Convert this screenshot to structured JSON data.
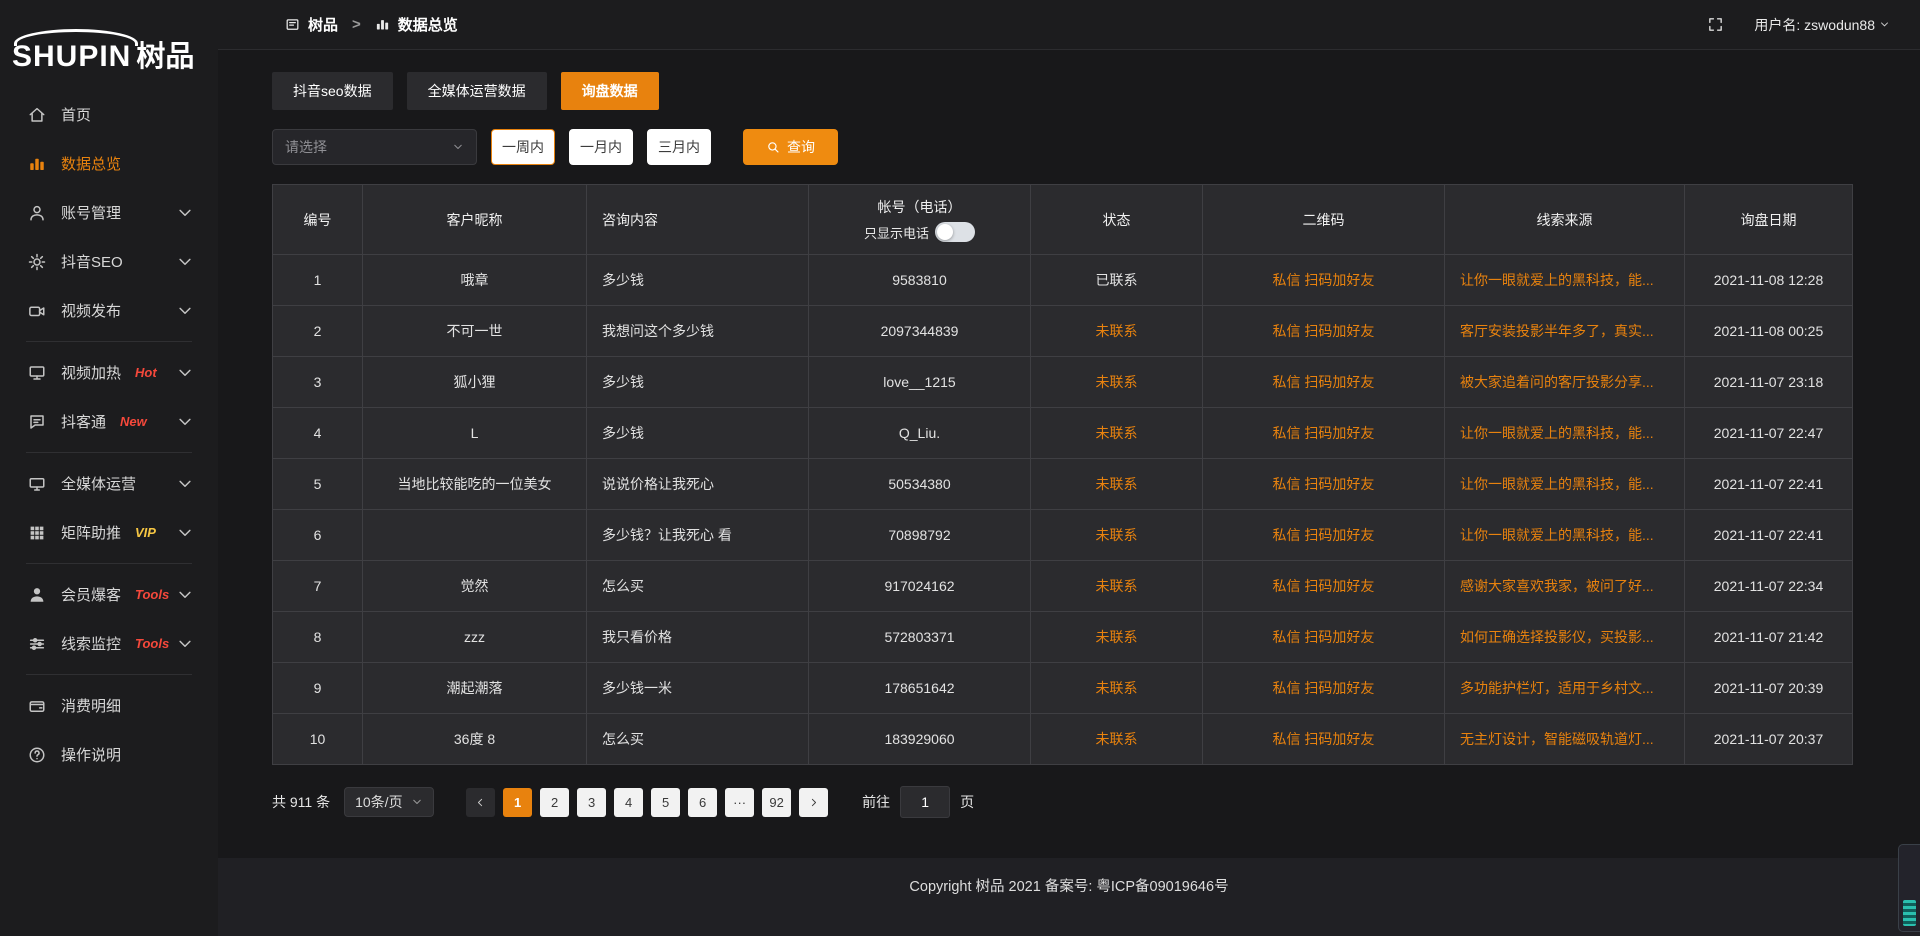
{
  "brand": {
    "logo_en": "SHUPIN",
    "logo_cn": "树品"
  },
  "topbar": {
    "breadcrumb": [
      {
        "label": "树品",
        "icon": "app-icon"
      },
      {
        "label": "数据总览",
        "icon": "bar-chart-icon"
      }
    ],
    "separator": ">",
    "username": "用户名: zswodun88"
  },
  "sidebar": {
    "items": [
      {
        "id": "home",
        "icon": "home-icon",
        "label": "首页",
        "active": false,
        "expandable": false
      },
      {
        "id": "data-overview",
        "icon": "bar-chart-icon",
        "label": "数据总览",
        "active": true,
        "expandable": false
      },
      {
        "id": "account-management",
        "icon": "user-icon",
        "label": "账号管理",
        "expandable": true
      },
      {
        "id": "douyin-seo",
        "icon": "gear-icon",
        "label": "抖音SEO",
        "expandable": true
      },
      {
        "id": "video-publish",
        "icon": "video-camera-icon",
        "label": "视频发布",
        "expandable": true
      },
      {
        "type": "divider"
      },
      {
        "id": "video-heating",
        "icon": "monitor-icon",
        "label": "视频加热",
        "badge": "Hot",
        "badge_style": "badge-red",
        "expandable": true
      },
      {
        "id": "douketong",
        "icon": "chat-icon",
        "label": "抖客通",
        "badge": "New",
        "badge_style": "badge-red",
        "expandable": true
      },
      {
        "type": "divider"
      },
      {
        "id": "media-operation",
        "icon": "screen-icon",
        "label": "全媒体运营",
        "expandable": true
      },
      {
        "id": "matrix-boost",
        "icon": "grid-icon",
        "label": "矩阵助推",
        "badge": "VIP",
        "badge_style": "badge-yellow",
        "expandable": true
      },
      {
        "type": "divider"
      },
      {
        "id": "member-burst",
        "icon": "member-icon",
        "label": "会员爆客",
        "badge": "Tools",
        "badge_style": "badge-red",
        "expandable": true
      },
      {
        "id": "clue-monitor",
        "icon": "sliders-icon",
        "label": "线索监控",
        "badge": "Tools",
        "badge_style": "badge-red",
        "expandable": true
      },
      {
        "type": "divider"
      },
      {
        "id": "consumption-detail",
        "icon": "wallet-icon",
        "label": "消费明细",
        "expandable": false
      },
      {
        "id": "operation-guide",
        "icon": "help-icon",
        "label": "操作说明",
        "expandable": false
      }
    ]
  },
  "tabs": [
    {
      "label": "抖音seo数据",
      "active": false
    },
    {
      "label": "全媒体运营数据",
      "active": false
    },
    {
      "label": "询盘数据",
      "active": true
    }
  ],
  "filters": {
    "select_placeholder": "请选择",
    "ranges": [
      {
        "label": "一周内",
        "active": true
      },
      {
        "label": "一月内",
        "active": false
      },
      {
        "label": "三月内",
        "active": false
      }
    ],
    "search_label": "查询"
  },
  "table": {
    "headers": [
      "编号",
      "客户昵称",
      "咨询内容",
      "帐号（电话）",
      "状态",
      "二维码",
      "线索来源",
      "询盘日期"
    ],
    "phone_toggle_label": "只显示电话",
    "rows": [
      {
        "id": "1",
        "nickname": "哦章",
        "content": "多少钱",
        "account": "9583810",
        "status": "已联系",
        "contacted": true,
        "qrcode": "私信 扫码加好友",
        "source": "让你一眼就爱上的黑科技，能...",
        "date": "2021-11-08 12:28"
      },
      {
        "id": "2",
        "nickname": "不可一世",
        "content": "我想问这个多少钱",
        "account": "2097344839",
        "status": "未联系",
        "contacted": false,
        "qrcode": "私信 扫码加好友",
        "source": "客厅安装投影半年多了，真实...",
        "date": "2021-11-08 00:25"
      },
      {
        "id": "3",
        "nickname": "狐小狸",
        "content": "多少钱",
        "account": "love__1215",
        "status": "未联系",
        "contacted": false,
        "qrcode": "私信 扫码加好友",
        "source": "被大家追着问的客厅投影分享...",
        "date": "2021-11-07 23:18"
      },
      {
        "id": "4",
        "nickname": "L",
        "content": "多少钱",
        "account": "Q_Liu.",
        "status": "未联系",
        "contacted": false,
        "qrcode": "私信 扫码加好友",
        "source": "让你一眼就爱上的黑科技，能...",
        "date": "2021-11-07 22:47"
      },
      {
        "id": "5",
        "nickname": "当地比较能吃的一位美女",
        "content": "说说价格让我死心",
        "account": "50534380",
        "status": "未联系",
        "contacted": false,
        "qrcode": "私信 扫码加好友",
        "source": "让你一眼就爱上的黑科技，能...",
        "date": "2021-11-07 22:41"
      },
      {
        "id": "6",
        "nickname": "",
        "content": "多少钱？让我死心 看",
        "account": "70898792",
        "status": "未联系",
        "contacted": false,
        "qrcode": "私信 扫码加好友",
        "source": "让你一眼就爱上的黑科技，能...",
        "date": "2021-11-07 22:41"
      },
      {
        "id": "7",
        "nickname": "觉然",
        "content": "怎么买",
        "account": "917024162",
        "status": "未联系",
        "contacted": false,
        "qrcode": "私信 扫码加好友",
        "source": "感谢大家喜欢我家，被问了好...",
        "date": "2021-11-07 22:34"
      },
      {
        "id": "8",
        "nickname": "zzz",
        "content": "我只看价格",
        "account": "572803371",
        "status": "未联系",
        "contacted": false,
        "qrcode": "私信 扫码加好友",
        "source": "如何正确选择投影仪，买投影...",
        "date": "2021-11-07 21:42"
      },
      {
        "id": "9",
        "nickname": "潮起潮落",
        "content": "多少钱一米",
        "account": "178651642",
        "status": "未联系",
        "contacted": false,
        "qrcode": "私信 扫码加好友",
        "source": "多功能护栏灯，适用于乡村文...",
        "date": "2021-11-07 20:39"
      },
      {
        "id": "10",
        "nickname": "36度 8",
        "content": "怎么买",
        "account": "183929060",
        "status": "未联系",
        "contacted": false,
        "qrcode": "私信 扫码加好友",
        "source": "无主灯设计，智能磁吸轨道灯...",
        "date": "2021-11-07 20:37"
      }
    ]
  },
  "pagination": {
    "total": "共 911 条",
    "page_size": "10条/页",
    "pages": [
      "1",
      "2",
      "3",
      "4",
      "5",
      "6",
      "···",
      "92"
    ],
    "active_page": "1",
    "goto_label": "前往",
    "goto_value": "1",
    "goto_suffix": "页"
  },
  "footer": {
    "copyright": "Copyright 树品 2021 备案号: 粤ICP备09019646号"
  },
  "colors": {
    "accent": "#e8820e",
    "table_link": "#e8820e",
    "badge_hot": "#f5483b",
    "badge_vip": "#f6c643",
    "status_contacted": "#e2e2e2",
    "status_uncontacted": "#e8820e",
    "page_active_bg": "#e8820e"
  }
}
